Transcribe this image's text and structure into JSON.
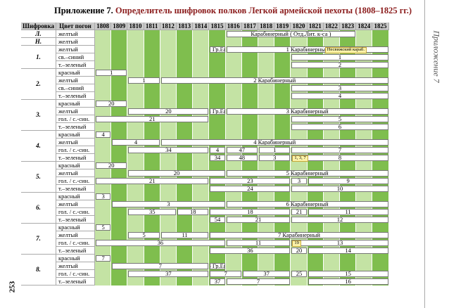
{
  "title": {
    "prefix": "Приложение 7.",
    "main": "Определитель шифровок полков Легкой армейской пехоты (1808–1825 гг.)"
  },
  "page_number": "253",
  "side_label": "Приложение 7",
  "colors": {
    "green": "#7fbe4e",
    "light_green": "#c4e3a4",
    "header": "#c9c9c9",
    "shade": "#e3e3e3",
    "note": "#fbf2a8"
  },
  "columns": {
    "code": "Шифровка",
    "color": "Цвет погон"
  },
  "years": [
    "1808",
    "1809",
    "1810",
    "1811",
    "1812",
    "1813",
    "1814",
    "1815",
    "1816",
    "1817",
    "1818",
    "1819",
    "1820",
    "1821",
    "1822",
    "1823",
    "1824",
    "1825"
  ],
  "groups": [
    {
      "label": "Л.",
      "rows": [
        {
          "color": "желтый",
          "bars": [
            {
              "from": 1816,
              "to": 1823,
              "text": "Карабинерный ( Отд.Лит. к-са )"
            }
          ]
        }
      ]
    },
    {
      "label": "Н.",
      "rows": [
        {
          "color": "желтый",
          "bars": []
        }
      ]
    },
    {
      "label": "1.",
      "rows": [
        {
          "color": "желтый",
          "bars": [
            {
              "from": 1815,
              "to": 1815,
              "text": "1 Гр.Ег."
            },
            {
              "from": 1816,
              "to": 1825,
              "text": "1 Карабинерный"
            }
          ]
        },
        {
          "color": "св.–синий",
          "bars": [
            {
              "from": 1820,
              "to": 1825,
              "text": "1"
            }
          ]
        },
        {
          "color": "т.–зеленый",
          "bars": [
            {
              "from": 1820,
              "to": 1825,
              "text": "2"
            }
          ]
        }
      ]
    },
    {
      "label": "2.",
      "rows": [
        {
          "color": "красный",
          "bars": [
            {
              "from": 1808,
              "to": 1809,
              "text": "1"
            }
          ]
        },
        {
          "color": "желтый",
          "bars": [
            {
              "from": 1810,
              "to": 1811,
              "text": "1"
            },
            {
              "from": 1812,
              "to": 1825,
              "text": "2 Карабинерный"
            }
          ]
        },
        {
          "color": "св.–синий",
          "bars": [
            {
              "from": 1820,
              "to": 1825,
              "text": "3"
            }
          ]
        },
        {
          "color": "т.–зеленый",
          "bars": [
            {
              "from": 1820,
              "to": 1825,
              "text": "4"
            }
          ]
        }
      ]
    },
    {
      "label": "3.",
      "rows": [
        {
          "color": "красный",
          "bars": [
            {
              "from": 1808,
              "to": 1809,
              "text": "20"
            }
          ]
        },
        {
          "color": "желтый",
          "bars": [
            {
              "from": 1810,
              "to": 1814,
              "text": "20"
            },
            {
              "from": 1815,
              "to": 1815,
              "text": "3 Гр.Ег."
            },
            {
              "from": 1816,
              "to": 1825,
              "text": "3 Карабинерный"
            }
          ]
        },
        {
          "color": "гол. / с.-син.",
          "bars": [
            {
              "from": 1808,
              "to": 1814,
              "text": "21"
            },
            {
              "from": 1820,
              "to": 1825,
              "text": "5"
            }
          ]
        },
        {
          "color": "т.–зеленый",
          "bars": [
            {
              "from": 1820,
              "to": 1825,
              "text": "6"
            }
          ]
        }
      ]
    },
    {
      "label": "4.",
      "rows": [
        {
          "color": "красный",
          "bars": [
            {
              "from": 1808,
              "to": 1808,
              "text": "4"
            }
          ]
        },
        {
          "color": "желтый",
          "bars": [
            {
              "from": 1809,
              "to": 1811,
              "text": "4"
            },
            {
              "from": 1812,
              "to": 1825,
              "text": "4 Карабинерный"
            }
          ]
        },
        {
          "color": "гол. / с.-син.",
          "bars": [
            {
              "from": 1810,
              "to": 1814,
              "text": "34"
            },
            {
              "from": 1815,
              "to": 1815,
              "text": "4"
            },
            {
              "from": 1816,
              "to": 1817,
              "text": "47"
            },
            {
              "from": 1818,
              "to": 1819,
              "text": "1"
            },
            {
              "from": 1820,
              "to": 1825,
              "text": "7"
            }
          ]
        },
        {
          "color": "т.–зеленый",
          "bars": [
            {
              "from": 1815,
              "to": 1815,
              "text": "34"
            },
            {
              "from": 1816,
              "to": 1817,
              "text": "48"
            },
            {
              "from": 1818,
              "to": 1819,
              "text": "3"
            },
            {
              "from": 1820,
              "to": 1825,
              "text": "8"
            }
          ]
        }
      ]
    },
    {
      "label": "5.",
      "rows": [
        {
          "color": "красный",
          "bars": [
            {
              "from": 1808,
              "to": 1809,
              "text": "20"
            }
          ]
        },
        {
          "color": "желтый",
          "bars": [
            {
              "from": 1810,
              "to": 1815,
              "text": "20"
            },
            {
              "from": 1816,
              "to": 1825,
              "text": "5 Карабинерный"
            }
          ]
        },
        {
          "color": "гол. / с.-син.",
          "bars": [
            {
              "from": 1808,
              "to": 1814,
              "text": "21"
            },
            {
              "from": 1815,
              "to": 1819,
              "text": "23"
            },
            {
              "from": 1820,
              "to": 1820,
              "text": "3"
            },
            {
              "from": 1821,
              "to": 1825,
              "text": "9"
            }
          ]
        },
        {
          "color": "т.–зеленый",
          "bars": [
            {
              "from": 1815,
              "to": 1819,
              "text": "24"
            },
            {
              "from": 1820,
              "to": 1825,
              "text": "10"
            }
          ]
        }
      ]
    },
    {
      "label": "6.",
      "rows": [
        {
          "color": "красный",
          "bars": [
            {
              "from": 1808,
              "to": 1808,
              "text": "3"
            }
          ]
        },
        {
          "color": "желтый",
          "bars": [
            {
              "from": 1809,
              "to": 1815,
              "text": "3"
            },
            {
              "from": 1816,
              "to": 1825,
              "text": "6 Карабинерный"
            }
          ]
        },
        {
          "color": "гол. / с.-син.",
          "bars": [
            {
              "from": 1810,
              "to": 1812,
              "text": "35"
            },
            {
              "from": 1813,
              "to": 1814,
              "text": "18"
            },
            {
              "from": 1815,
              "to": 1819,
              "text": "18"
            },
            {
              "from": 1820,
              "to": 1820,
              "text": "21"
            },
            {
              "from": 1821,
              "to": 1825,
              "text": "11"
            }
          ]
        },
        {
          "color": "т.–зеленый",
          "bars": [
            {
              "from": 1815,
              "to": 1815,
              "text": "54"
            },
            {
              "from": 1816,
              "to": 1819,
              "text": "21"
            },
            {
              "from": 1820,
              "to": 1825,
              "text": "12"
            }
          ]
        }
      ]
    },
    {
      "label": "7.",
      "rows": [
        {
          "color": "красный",
          "bars": [
            {
              "from": 1808,
              "to": 1808,
              "text": "5"
            }
          ]
        },
        {
          "color": "желтый",
          "bars": [
            {
              "from": 1810,
              "to": 1811,
              "text": "5"
            },
            {
              "from": 1812,
              "to": 1814,
              "text": "11"
            },
            {
              "from": 1815,
              "to": 1825,
              "text": "7 Карабинерный"
            }
          ]
        },
        {
          "color": "гол. / с.-син.",
          "bars": [
            {
              "from": 1808,
              "to": 1815,
              "text": "36"
            },
            {
              "from": 1816,
              "to": 1819,
              "text": "11"
            },
            {
              "from": 1820,
              "to": 1825,
              "text": "13"
            }
          ]
        },
        {
          "color": "т.–зеленый",
          "bars": [
            {
              "from": 1815,
              "to": 1819,
              "text": "36"
            },
            {
              "from": 1820,
              "to": 1820,
              "text": "20"
            },
            {
              "from": 1821,
              "to": 1825,
              "text": "14"
            }
          ]
        }
      ]
    },
    {
      "label": "8.",
      "rows": [
        {
          "color": "красный",
          "bars": [
            {
              "from": 1808,
              "to": 1808,
              "text": "7"
            }
          ]
        },
        {
          "color": "желтый",
          "bars": [
            {
              "from": 1809,
              "to": 1814,
              "text": "7"
            },
            {
              "from": 1815,
              "to": 1815,
              "text": "8 Гр.Ег."
            }
          ]
        },
        {
          "color": "гол. / с.-син.",
          "bars": [
            {
              "from": 1810,
              "to": 1814,
              "text": "37"
            },
            {
              "from": 1815,
              "to": 1816,
              "text": "7"
            },
            {
              "from": 1817,
              "to": 1819,
              "text": "37"
            },
            {
              "from": 1820,
              "to": 1820,
              "text": "25"
            },
            {
              "from": 1821,
              "to": 1825,
              "text": "15"
            }
          ]
        },
        {
          "color": "т.–зеленый",
          "bars": [
            {
              "from": 1815,
              "to": 1815,
              "text": "37"
            },
            {
              "from": 1816,
              "to": 1819,
              "text": "7"
            },
            {
              "from": 1821,
              "to": 1825,
              "text": "16"
            }
          ]
        }
      ]
    }
  ],
  "notes": [
    {
      "group": 2,
      "row": 0,
      "year": 1822,
      "text": "Несвижский караб."
    },
    {
      "group": 5,
      "row": 3,
      "year": 1820,
      "text": "1, 3, 7"
    },
    {
      "group": 8,
      "row": 2,
      "year": 1820,
      "text": "19"
    }
  ]
}
